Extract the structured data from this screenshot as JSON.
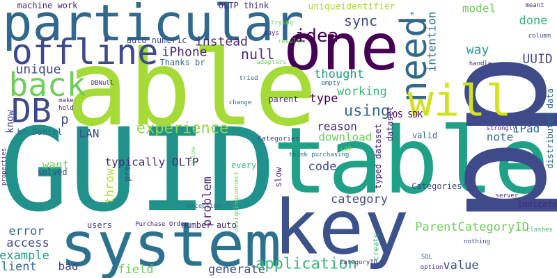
{
  "words": [
    {
      "text": "particular",
      "color": "#31688e"
    },
    {
      "text": "one",
      "color": "#440154"
    },
    {
      "text": "able",
      "color": "#a5db36"
    },
    {
      "text": "GUID",
      "color": "#21918c"
    },
    {
      "text": "table",
      "color": "#1fa187"
    },
    {
      "text": "key",
      "color": "#3b528b"
    },
    {
      "text": "system",
      "color": "#2c728e"
    },
    {
      "text": "pp",
      "color": "#3e4a89"
    },
    {
      "text": "DB",
      "color": "#3e4989"
    },
    {
      "text": "back",
      "color": "#6ece58"
    },
    {
      "text": "offline",
      "color": "#3e4989"
    },
    {
      "text": "need",
      "color": "#31688e"
    },
    {
      "text": "will",
      "color": "#d2e21b"
    },
    {
      "text": "idea",
      "color": "#440154"
    },
    {
      "text": "sync",
      "color": "#3e4989"
    },
    {
      "text": "instead",
      "color": "#482878"
    },
    {
      "text": "auto numeric",
      "color": "#3e4989"
    },
    {
      "text": "iPhone",
      "color": "#482878"
    },
    {
      "text": "null",
      "color": "#482878"
    },
    {
      "text": "Thanks br",
      "color": "#31688e"
    },
    {
      "text": "machine work",
      "color": "#482878"
    },
    {
      "text": "OLTP think",
      "color": "#482878"
    },
    {
      "text": "uniqueidentifier",
      "color": "#addc30"
    },
    {
      "text": "model",
      "color": "#6ece58"
    },
    {
      "text": "meant",
      "color": "#482878"
    },
    {
      "text": "e",
      "color": "#31688e"
    },
    {
      "text": "trying",
      "color": "#6ece58"
    },
    {
      "text": "says",
      "color": "#482878"
    },
    {
      "text": "results",
      "color": "#6ece58"
    },
    {
      "text": "column",
      "color": "#3e4989"
    },
    {
      "text": "done",
      "color": "#35b779"
    },
    {
      "text": "way",
      "color": "#1f9e89"
    },
    {
      "text": "UUID",
      "color": "#3e4989"
    },
    {
      "text": "intention",
      "color": "#2c728e"
    },
    {
      "text": "unique",
      "color": "#3e4989"
    },
    {
      "text": "thought",
      "color": "#1f9e89"
    },
    {
      "text": "handle",
      "color": "#482878"
    },
    {
      "text": "adapters",
      "color": "#6ece58"
    },
    {
      "text": "empty",
      "color": "#31688e"
    },
    {
      "text": "tried",
      "color": "#31688e"
    },
    {
      "text": "DBNull",
      "color": "#482878"
    },
    {
      "text": "make",
      "color": "#482878"
    },
    {
      "text": "hold",
      "color": "#482878"
    },
    {
      "text": "change",
      "color": "#31688e"
    },
    {
      "text": "parent",
      "color": "#482878"
    },
    {
      "text": "type",
      "color": "#440154"
    },
    {
      "text": "working",
      "color": "#35b779"
    },
    {
      "text": "using",
      "color": "#31688e"
    },
    {
      "text": "iOS SDK",
      "color": "#440154"
    },
    {
      "text": "p",
      "color": "#3e4989"
    },
    {
      "text": "know",
      "color": "#3e4989"
    },
    {
      "text": "br Daniel",
      "color": "#31688e"
    },
    {
      "text": "experience",
      "color": "#90d743"
    },
    {
      "text": "reason",
      "color": "#482878"
    },
    {
      "text": "download",
      "color": "#6ece58"
    },
    {
      "text": "LAN",
      "color": "#3e4989"
    },
    {
      "text": "iPad",
      "color": "#31688e"
    },
    {
      "text": "note",
      "color": "#31688e"
    },
    {
      "text": "dataset",
      "color": "#482878"
    },
    {
      "text": "typed dataset",
      "color": "#482878"
    },
    {
      "text": "distributed data",
      "color": "#31688e"
    },
    {
      "text": "strongly",
      "color": "#482878"
    },
    {
      "text": "valid",
      "color": "#31688e"
    },
    {
      "text": "pre",
      "color": "#3e4989"
    },
    {
      "text": "typically OLTP",
      "color": "#482878"
    },
    {
      "text": "want",
      "color": "#6ece58"
    },
    {
      "text": "solved",
      "color": "#3e4989"
    },
    {
      "text": "properties",
      "color": "#482878"
    },
    {
      "text": "allow",
      "color": "#6ece58"
    },
    {
      "text": "throw",
      "color": "#b5de2b"
    },
    {
      "text": "problem",
      "color": "#482878"
    },
    {
      "text": "every",
      "color": "#35b779"
    },
    {
      "text": "code",
      "color": "#3e4989"
    },
    {
      "text": "slow",
      "color": "#482878"
    },
    {
      "text": "think purchasing",
      "color": "#31688e"
    },
    {
      "text": "top",
      "color": "#6ece58"
    },
    {
      "text": "Categories'",
      "color": "#3e4989"
    },
    {
      "text": "category",
      "color": "#3e4989"
    },
    {
      "text": "designingconnect",
      "color": "#6ece58"
    },
    {
      "text": "exception",
      "color": "#31688e"
    },
    {
      "text": "server",
      "color": "#482878"
    },
    {
      "text": "indicate",
      "color": "#482878"
    },
    {
      "text": "value",
      "color": "#3e4989"
    },
    {
      "text": "ParentCategoryID",
      "color": "#6ece58"
    },
    {
      "text": "clashes",
      "color": "#35b779"
    },
    {
      "text": "nothing",
      "color": "#3e4989"
    },
    {
      "text": "error",
      "color": "#31688e"
    },
    {
      "text": "access",
      "color": "#3e4989"
    },
    {
      "text": "example",
      "color": "#1f9e89"
    },
    {
      "text": "client",
      "color": "#31688e"
    },
    {
      "text": "bad",
      "color": "#3e4989"
    },
    {
      "text": "users",
      "color": "#3e4989"
    },
    {
      "text": "number auto",
      "color": "#482878"
    },
    {
      "text": "Purchase Order",
      "color": "#482878"
    },
    {
      "text": "field",
      "color": "#6ece58"
    },
    {
      "text": "generate",
      "color": "#3e4989"
    },
    {
      "text": "application",
      "color": "#35b779"
    },
    {
      "text": "create",
      "color": "#35b779"
    },
    {
      "text": "CategoryID",
      "color": "#482878"
    },
    {
      "text": "SQL",
      "color": "#31688e"
    },
    {
      "text": "option",
      "color": "#482878"
    },
    {
      "text": "Categories",
      "color": "#3e4989"
    }
  ]
}
